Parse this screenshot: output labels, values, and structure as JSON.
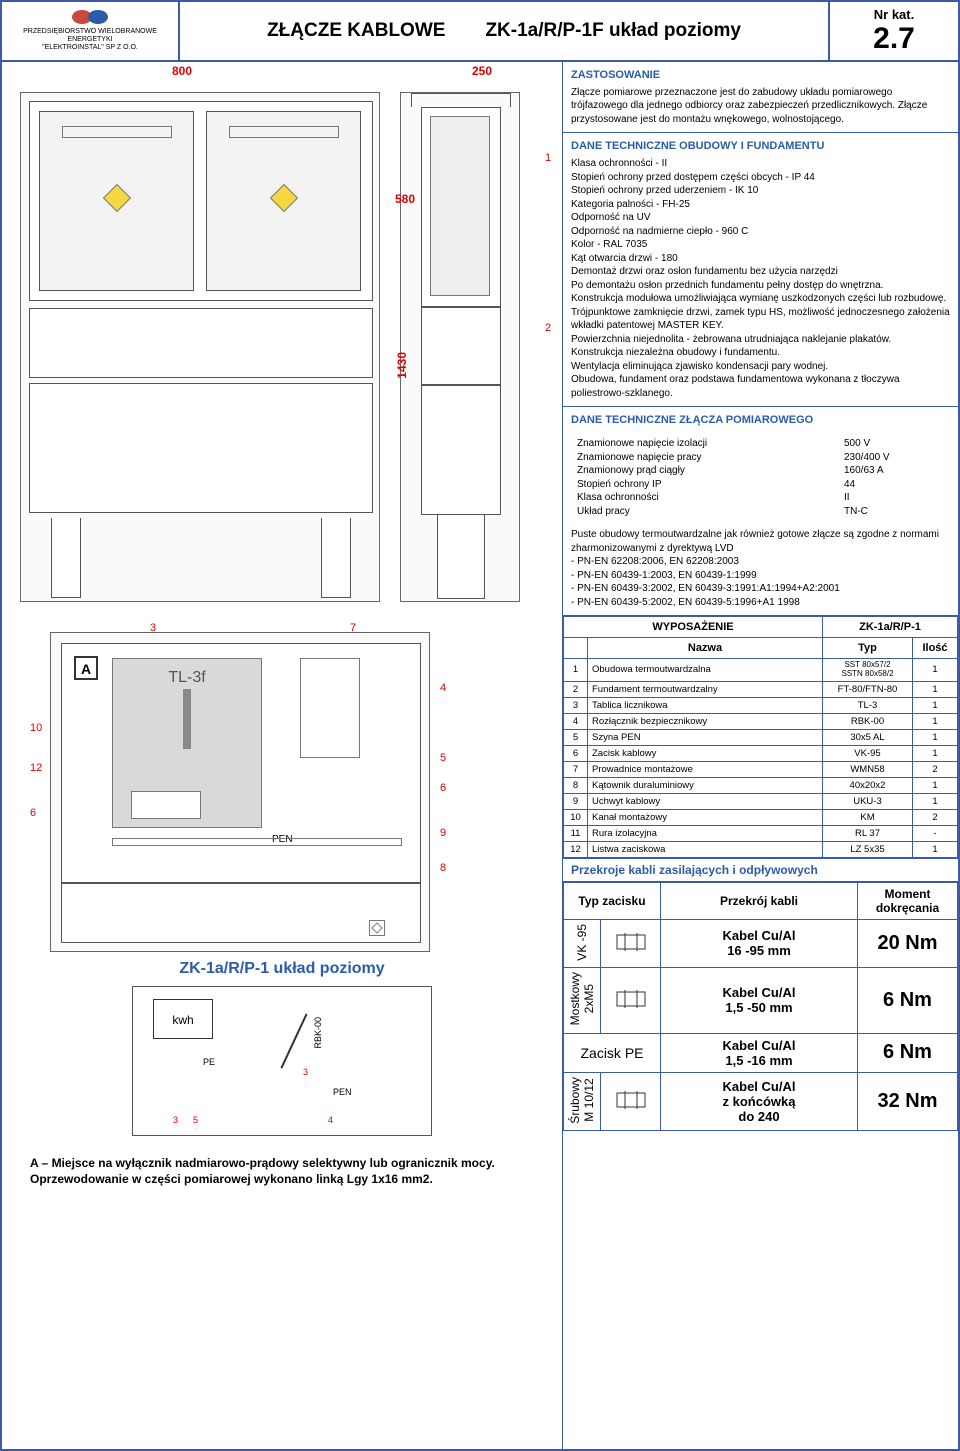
{
  "header": {
    "company_line1": "PRZEDSIĘBIORSTWO WIELOBRANOWE",
    "company_line2": "ENERGETYKI",
    "company_line3": "\"ELEKTROINSTAL\" SP Z O.O.",
    "title_left": "ZŁĄCZE KABLOWE",
    "title_right": "ZK-1a/R/P-1F układ poziomy",
    "cat_label": "Nr kat.",
    "cat_num": "2.7"
  },
  "dims": {
    "w": "800",
    "d": "250",
    "h1": "580",
    "h2": "1430"
  },
  "zastosowanie": {
    "title": "ZASTOSOWANIE",
    "body": "Złącze pomiarowe przeznaczone jest do zabudowy układu pomiarowego trójfazowego dla jednego odbiorcy oraz zabezpieczeń przedlicznikowych. Złącze przystosowane jest do montażu wnękowego, wolnostojącego."
  },
  "dane_obudowy": {
    "title": "DANE TECHNICZNE OBUDOWY I FUNDAMENTU",
    "lines": [
      "Klasa ochronności  - II",
      "Stopień ochrony przed dostępem części obcych - IP 44",
      "Stopień ochrony przed uderzeniem  - IK 10",
      "Kategoria palności  - FH-25",
      "Odporność na UV",
      "Odporność na nadmierne ciepło - 960 C",
      "Kolor - RAL 7035",
      "Kąt otwarcia drzwi - 180",
      "Demontaż drzwi oraz osłon fundamentu bez użycia narzędzi",
      "Po demontażu osłon przednich fundamentu pełny dostęp do wnętrzna.",
      "Konstrukcja modułowa umożliwiająca wymianę uszkodzonych części lub rozbudowę.",
      "Trójpunktowe zamknięcie drzwi, zamek typu HS, możliwość jednoczesnego założenia wkładki patentowej MASTER KEY.",
      "Powierzchnia niejednolita - żebrowana utrudniająca naklejanie plakatów.",
      "Konstrukcja niezależna obudowy i fundamentu.",
      "Wentylacja eliminująca zjawisko kondensacji pary wodnej.",
      "Obudowa, fundament oraz podstawa fundamentowa wykonana z tłoczywa poliestrowo-szklanego."
    ]
  },
  "dane_zlacza": {
    "title": "DANE TECHNICZNE ZŁĄCZA POMIAROWEGO",
    "rows": [
      [
        "Znamionowe napięcie izolacji",
        "500 V"
      ],
      [
        "Znamionowe napięcie pracy",
        "230/400 V"
      ],
      [
        "Znamionowy prąd ciągły",
        "160/63 A"
      ],
      [
        "Stopień ochrony IP",
        "44"
      ],
      [
        "Klasa ochronności",
        "II"
      ],
      [
        "Układ pracy",
        "TN-C"
      ]
    ],
    "norms_intro": "Puste obudowy termoutwardzalne jak również gotowe złącze są zgodne z normami zharmonizowanymi z dyrektywą LVD",
    "norms": [
      "-  PN-EN 62208:2006, EN 62208:2003",
      "-  PN-EN 60439-1:2003, EN 60439-1:1999",
      "-  PN-EN 60439-3:2002, EN 60439-3:1991:A1:1994+A2:2001",
      "-  PN-EN 60439-5:2002, EN 60439-5:1996+A1 1998"
    ]
  },
  "wyposazenie": {
    "title": "WYPOSAŻENIE",
    "variant": "ZK-1a/R/P-1",
    "cols": [
      "",
      "Nazwa",
      "Typ",
      "Ilość"
    ],
    "rows": [
      [
        "1",
        "Obudowa termoutwardzalna",
        "SST 80x57/2\nSSTN 80x58/2",
        "1"
      ],
      [
        "2",
        "Fundament termoutwardzalny",
        "FT-80/FTN-80",
        "1"
      ],
      [
        "3",
        "Tablica licznikowa",
        "TL-3",
        "1"
      ],
      [
        "4",
        "Rozłącznik bezpiecznikowy",
        "RBK-00",
        "1"
      ],
      [
        "5",
        "Szyna PEN",
        "30x5 AL",
        "1"
      ],
      [
        "6",
        "Zacisk kablowy",
        "VK-95",
        "1"
      ],
      [
        "7",
        "Prowadnice montażowe",
        "WMN58",
        "2"
      ],
      [
        "8",
        "Kątownik duraluminiowy",
        "40x20x2",
        "1"
      ],
      [
        "9",
        "Uchwyt kablowy",
        "UKU-3",
        "1"
      ],
      [
        "10",
        "Kanał montażowy",
        "KM",
        "2"
      ],
      [
        "11",
        "Rura izolacyjna",
        "RL 37",
        "-"
      ],
      [
        "12",
        "Listwa zaciskowa",
        "LZ 5x35",
        "1"
      ]
    ]
  },
  "kable": {
    "title": "Przekroje kabli zasilających i odpływowych",
    "cols": [
      "Typ zacisku",
      "Przekrój kabli",
      "Moment dokręcania"
    ],
    "rows": [
      [
        "VK -95",
        "Kabel Cu/Al\n16 -95 mm",
        "20 Nm"
      ],
      [
        "Mostkowy\n2xM5",
        "Kabel Cu/Al\n1,5 -50 mm",
        "6 Nm"
      ],
      [
        "Zacisk  PE",
        "Kabel Cu/Al\n1,5 -16 mm",
        "6 Nm"
      ],
      [
        "Śrubowy\nM 10/12",
        "Kabel Cu/Al\nz końcówką\ndo 240",
        "32 Nm"
      ]
    ]
  },
  "schematic": {
    "title": "ZK-1a/R/P-1 układ poziomy",
    "kwh": "kwh",
    "pe": "PE",
    "pen": "PEN",
    "rbk": "RBK-00"
  },
  "note": "A – Miejsce na wyłącznik nadmiarowo-prądowy selektywny lub ogranicznik mocy. Oprzewodowanie w części pomiarowej wykonano linką Lgy 1x16 mm2.",
  "internal": {
    "A": "A",
    "tl3f": "TL-3f",
    "pen": "PEN"
  }
}
